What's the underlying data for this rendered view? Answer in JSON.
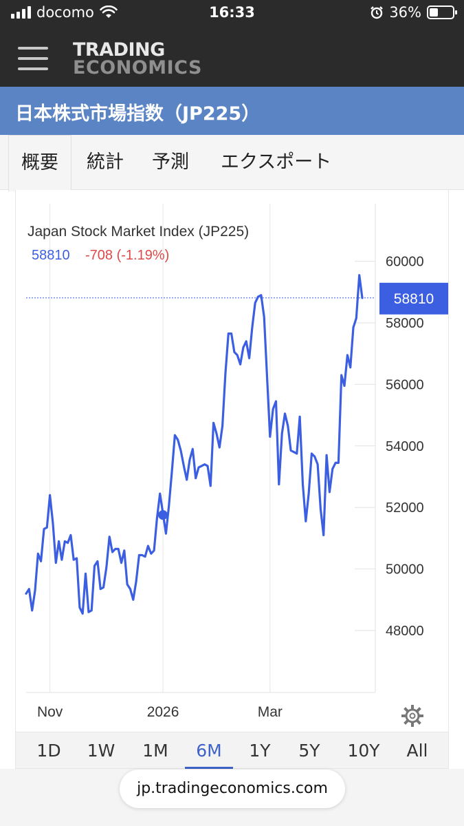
{
  "status_bar": {
    "carrier": "docomo",
    "time": "16:33",
    "battery": "36%"
  },
  "header": {
    "logo_line1": "TRADING",
    "logo_line2": "ECONOMICS"
  },
  "page_title": "日本株式市場指数（JP225）",
  "tabs": [
    {
      "label": "概要",
      "active": true
    },
    {
      "label": "統計",
      "active": false
    },
    {
      "label": "予測",
      "active": false
    },
    {
      "label": "エクスポート",
      "active": false
    }
  ],
  "chart_data": {
    "type": "line",
    "title": "Japan Stock Market Index (JP225)",
    "last_value": "58810",
    "change": "-708 (-1.19%)",
    "current_label": "58810",
    "ylim": [
      46000,
      61000
    ],
    "yticks": [
      48000,
      50000,
      52000,
      54000,
      56000,
      58000,
      60000
    ],
    "xticks": [
      {
        "label": "Nov",
        "index": 8
      },
      {
        "label": "2026",
        "index": 46
      },
      {
        "label": "Mar",
        "index": 82
      }
    ],
    "marker_index": 46,
    "grid": true,
    "series": [
      {
        "color": "#3b5fe0",
        "values": [
          49200,
          49350,
          48650,
          49300,
          50500,
          50250,
          51300,
          51350,
          52400,
          51500,
          50200,
          50900,
          50300,
          50900,
          50850,
          51100,
          50300,
          50350,
          48750,
          48550,
          49850,
          48600,
          48650,
          50100,
          50250,
          49350,
          49400,
          50050,
          51050,
          50550,
          50650,
          50650,
          50200,
          50600,
          49500,
          49350,
          49000,
          49600,
          50450,
          50450,
          50400,
          50750,
          50500,
          50600,
          51650,
          52450,
          51800,
          51150,
          52050,
          53150,
          54350,
          54200,
          53850,
          53350,
          52900,
          53550,
          53900,
          52950,
          53300,
          53350,
          53400,
          53350,
          52700,
          54750,
          54400,
          53950,
          54650,
          56350,
          57650,
          57650,
          57050,
          56950,
          56650,
          57200,
          57400,
          56850,
          57850,
          58650,
          58850,
          58900,
          58200,
          56250,
          54300,
          55200,
          55450,
          52750,
          54400,
          55050,
          54650,
          53850,
          53800,
          53750,
          54950,
          52750,
          51550,
          52450,
          53750,
          53650,
          53400,
          51950,
          51100,
          53700,
          52500,
          53250,
          53450,
          53450,
          56300,
          55950,
          56950,
          56550,
          57850,
          58150,
          59550,
          58810
        ]
      }
    ]
  },
  "ranges": [
    {
      "label": "1D",
      "active": false
    },
    {
      "label": "1W",
      "active": false
    },
    {
      "label": "1M",
      "active": false
    },
    {
      "label": "6M",
      "active": true
    },
    {
      "label": "1Y",
      "active": false
    },
    {
      "label": "5Y",
      "active": false
    },
    {
      "label": "10Y",
      "active": false
    },
    {
      "label": "All",
      "active": false
    }
  ],
  "url": "jp.tradingeconomics.com",
  "settings_icon": "gear-icon"
}
